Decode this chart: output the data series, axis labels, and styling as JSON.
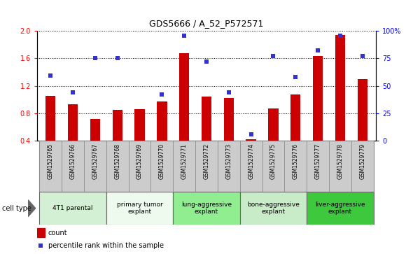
{
  "title": "GDS5666 / A_52_P572571",
  "samples": [
    "GSM1529765",
    "GSM1529766",
    "GSM1529767",
    "GSM1529768",
    "GSM1529769",
    "GSM1529770",
    "GSM1529771",
    "GSM1529772",
    "GSM1529773",
    "GSM1529774",
    "GSM1529775",
    "GSM1529776",
    "GSM1529777",
    "GSM1529778",
    "GSM1529779"
  ],
  "counts": [
    1.05,
    0.93,
    0.72,
    0.85,
    0.86,
    0.97,
    1.67,
    1.04,
    1.02,
    0.42,
    0.87,
    1.07,
    1.63,
    1.93,
    1.3
  ],
  "percentiles": [
    59,
    44,
    75,
    75,
    null,
    42,
    95,
    72,
    44,
    6,
    77,
    58,
    82,
    95,
    77
  ],
  "ylim_left": [
    0.4,
    2.0
  ],
  "ylim_right": [
    0,
    100
  ],
  "yticks_left": [
    0.4,
    0.8,
    1.2,
    1.6,
    2.0
  ],
  "yticks_right": [
    0,
    25,
    50,
    75,
    100
  ],
  "ytick_labels_right": [
    "0",
    "25",
    "50",
    "75",
    "100%"
  ],
  "bar_color": "#cc0000",
  "dot_color": "#3333cc",
  "bar_width": 0.45,
  "group_boundaries": [
    {
      "start": 0,
      "end": 2,
      "color": "#d4f0d4",
      "label": "4T1 parental"
    },
    {
      "start": 3,
      "end": 5,
      "color": "#edfaed",
      "label": "primary tumor\nexplant"
    },
    {
      "start": 6,
      "end": 8,
      "color": "#90ee90",
      "label": "lung-aggressive\nexplant"
    },
    {
      "start": 9,
      "end": 11,
      "color": "#c8ebc8",
      "label": "bone-aggressive\nexplant"
    },
    {
      "start": 12,
      "end": 14,
      "color": "#3ec83e",
      "label": "liver-aggressive\nexplant"
    }
  ],
  "legend_count_label": "count",
  "legend_pct_label": "percentile rank within the sample",
  "cell_type_label": "cell type"
}
